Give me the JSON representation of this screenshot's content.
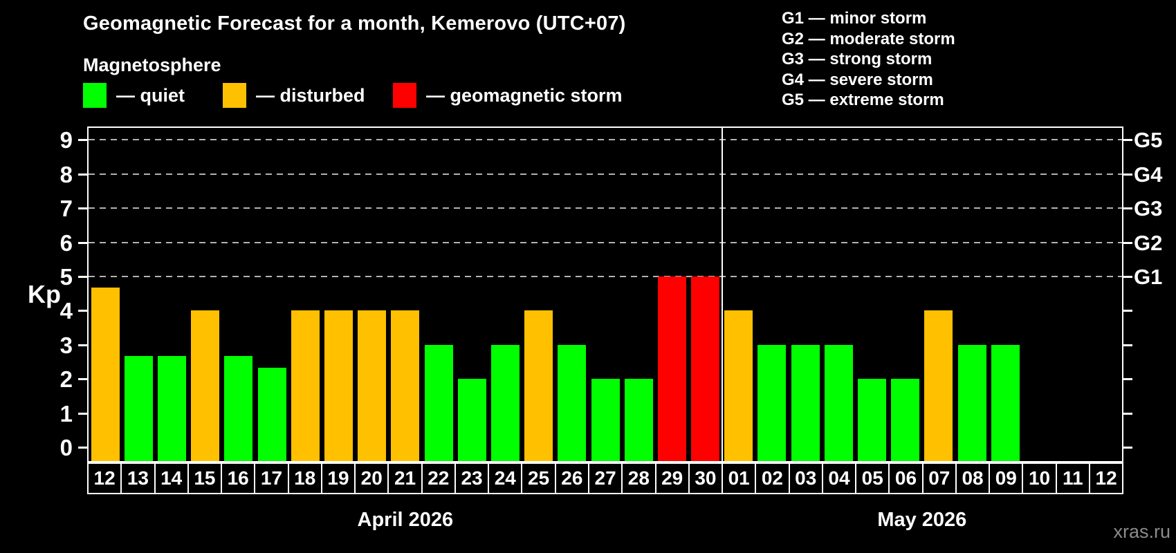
{
  "header": {
    "title": "Geomagnetic Forecast for a month, Kemerovo (UTC+07)",
    "subtitle": "Magnetosphere"
  },
  "legend": {
    "items": [
      {
        "key": "quiet",
        "label": "— quiet"
      },
      {
        "key": "disturbed",
        "label": "— disturbed"
      },
      {
        "key": "storm",
        "label": "— geomagnetic storm"
      }
    ]
  },
  "storm_scale_legend": {
    "items": [
      "G1 — minor storm",
      "G2 — moderate storm",
      "G3 — strong storm",
      "G4 — severe storm",
      "G5 — extreme storm"
    ]
  },
  "axis": {
    "y_label": "Kp",
    "y_ticks": [
      0,
      1,
      2,
      3,
      4,
      5,
      6,
      7,
      8,
      9
    ],
    "right_labels": [
      {
        "kp": 5,
        "label": "G1"
      },
      {
        "kp": 6,
        "label": "G2"
      },
      {
        "kp": 7,
        "label": "G3"
      },
      {
        "kp": 8,
        "label": "G4"
      },
      {
        "kp": 9,
        "label": "G5"
      }
    ],
    "gridlines_kp": [
      5,
      6,
      7,
      8,
      9
    ]
  },
  "colors": {
    "quiet": "#00ff00",
    "disturbed": "#ffc000",
    "storm": "#ff0000",
    "grid": "#b3b3b3",
    "background": "#000000"
  },
  "chart_data": {
    "type": "bar",
    "title": "Geomagnetic Forecast for a month, Kemerovo (UTC+07)",
    "ylabel": "Kp",
    "ylim": [
      0,
      9
    ],
    "legend_position": "top",
    "grid": "dashed horizontal lines at Kp 5,6,7,8,9 (G1–G5 levels)",
    "months": [
      {
        "label": "April 2026",
        "days": [
          {
            "day": "12",
            "kp": 4.67,
            "state": "disturbed"
          },
          {
            "day": "13",
            "kp": 2.67,
            "state": "quiet"
          },
          {
            "day": "14",
            "kp": 2.67,
            "state": "quiet"
          },
          {
            "day": "15",
            "kp": 4.0,
            "state": "disturbed"
          },
          {
            "day": "16",
            "kp": 2.67,
            "state": "quiet"
          },
          {
            "day": "17",
            "kp": 2.33,
            "state": "quiet"
          },
          {
            "day": "18",
            "kp": 4.0,
            "state": "disturbed"
          },
          {
            "day": "19",
            "kp": 4.0,
            "state": "disturbed"
          },
          {
            "day": "20",
            "kp": 4.0,
            "state": "disturbed"
          },
          {
            "day": "21",
            "kp": 4.0,
            "state": "disturbed"
          },
          {
            "day": "22",
            "kp": 3.0,
            "state": "quiet"
          },
          {
            "day": "23",
            "kp": 2.0,
            "state": "quiet"
          },
          {
            "day": "24",
            "kp": 3.0,
            "state": "quiet"
          },
          {
            "day": "25",
            "kp": 4.0,
            "state": "disturbed"
          },
          {
            "day": "26",
            "kp": 3.0,
            "state": "quiet"
          },
          {
            "day": "27",
            "kp": 2.0,
            "state": "quiet"
          },
          {
            "day": "28",
            "kp": 2.0,
            "state": "quiet"
          },
          {
            "day": "29",
            "kp": 5.0,
            "state": "storm"
          },
          {
            "day": "30",
            "kp": 5.0,
            "state": "storm"
          }
        ]
      },
      {
        "label": "May 2026",
        "days": [
          {
            "day": "01",
            "kp": 4.0,
            "state": "disturbed"
          },
          {
            "day": "02",
            "kp": 3.0,
            "state": "quiet"
          },
          {
            "day": "03",
            "kp": 3.0,
            "state": "quiet"
          },
          {
            "day": "04",
            "kp": 3.0,
            "state": "quiet"
          },
          {
            "day": "05",
            "kp": 2.0,
            "state": "quiet"
          },
          {
            "day": "06",
            "kp": 2.0,
            "state": "quiet"
          },
          {
            "day": "07",
            "kp": 4.0,
            "state": "disturbed"
          },
          {
            "day": "08",
            "kp": 3.0,
            "state": "quiet"
          },
          {
            "day": "09",
            "kp": 3.0,
            "state": "quiet"
          },
          {
            "day": "10",
            "kp": null,
            "state": null
          },
          {
            "day": "11",
            "kp": null,
            "state": null
          },
          {
            "day": "12",
            "kp": null,
            "state": null
          }
        ]
      }
    ]
  },
  "watermark": "xras.ru"
}
